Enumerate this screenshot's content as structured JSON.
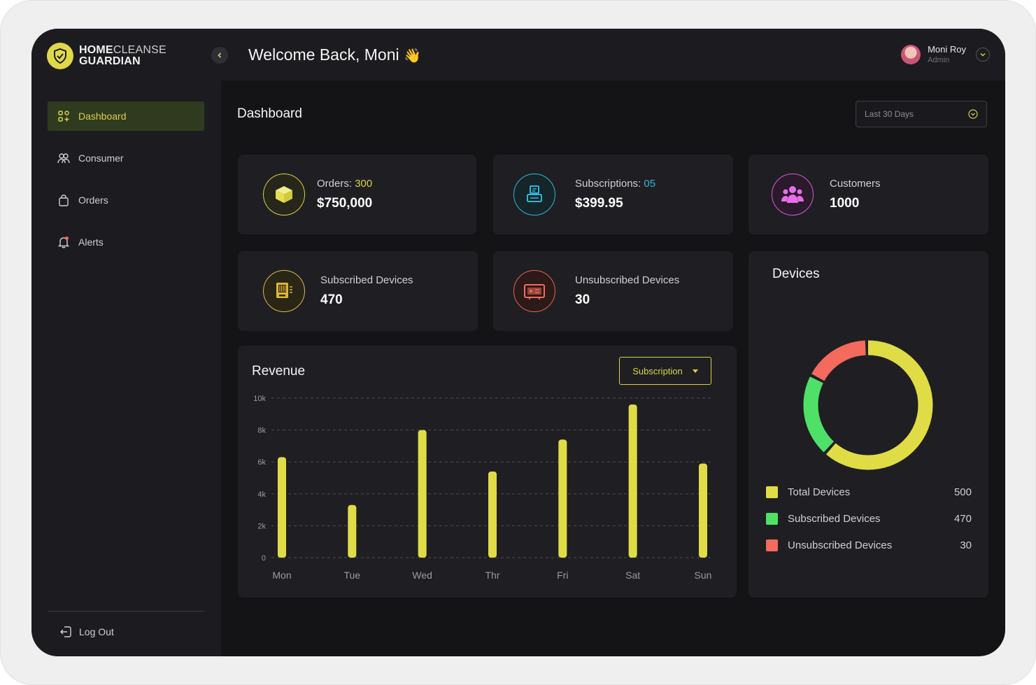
{
  "brand": {
    "line1_bold": "HOME",
    "line1_light": "CLEANSE",
    "line2": "GUARDIAN"
  },
  "header": {
    "welcome": "Welcome Back, Moni",
    "wave": "👋"
  },
  "user": {
    "name": "Moni Roy",
    "role": "Admin"
  },
  "sidebar": {
    "items": [
      {
        "label": "Dashboard",
        "icon": "grid-icon",
        "active": true
      },
      {
        "label": "Consumer",
        "icon": "users-icon",
        "active": false
      },
      {
        "label": "Orders",
        "icon": "bag-icon",
        "active": false
      },
      {
        "label": "Alerts",
        "icon": "bell-icon",
        "active": false
      }
    ],
    "logout": "Log Out"
  },
  "page": {
    "title": "Dashboard",
    "range": "Last 30 Days"
  },
  "stats": {
    "orders": {
      "label": "Orders: ",
      "count": "300",
      "value": "$750,000"
    },
    "subscriptions": {
      "label": "Subscriptions: ",
      "count": "05",
      "value": "$399.95"
    },
    "customers": {
      "label": "Customers",
      "value": "1000"
    },
    "subscribed": {
      "label": "Subscribed Devices",
      "value": "470"
    },
    "unsubscribed": {
      "label": "Unsubscribed Devices",
      "value": "30"
    }
  },
  "revenue": {
    "title": "Revenue",
    "filter": "Subscription"
  },
  "devices": {
    "title": "Devices",
    "legend": [
      {
        "label": "Total Devices",
        "value": "500",
        "color": "#e0dc46"
      },
      {
        "label": "Subscribed Devices",
        "value": "470",
        "color": "#4fe068"
      },
      {
        "label": "Unsubscribed Devices",
        "value": "30",
        "color": "#f46a5d"
      }
    ],
    "ring": [
      {
        "name": "Total Devices",
        "share": 0.62,
        "color": "#e0dc46"
      },
      {
        "name": "Subscribed Devices",
        "share": 0.21,
        "color": "#4fe068"
      },
      {
        "name": "Unsubscribed Devices",
        "share": 0.17,
        "color": "#f46a5d"
      }
    ]
  },
  "colors": {
    "accent": "#d9d24a",
    "bg": "#141417",
    "panel": "#1f1f23",
    "cyan": "#2fb6d8"
  },
  "chart_data": {
    "type": "bar",
    "title": "Revenue",
    "categories": [
      "Mon",
      "Tue",
      "Wed",
      "Thr",
      "Fri",
      "Sat",
      "Sun"
    ],
    "values": [
      6300,
      3300,
      8000,
      5400,
      7400,
      9600,
      5900
    ],
    "ylim": [
      0,
      10000
    ],
    "yticks": [
      "0",
      "2k",
      "4k",
      "6k",
      "8k",
      "10k"
    ],
    "grid": true,
    "color": "#e0dc46"
  }
}
